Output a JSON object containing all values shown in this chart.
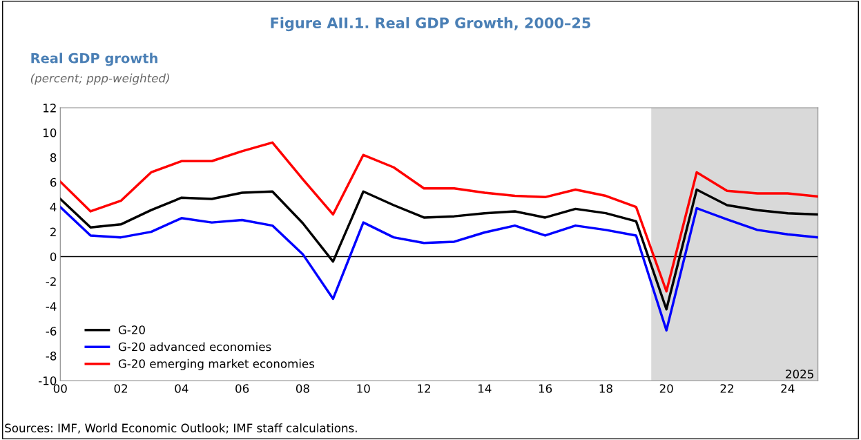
{
  "chart_data": {
    "type": "line",
    "title": "Figure AII.1. Real GDP Growth, 2000–25",
    "ylabel": "Real GDP growth",
    "subtitle": "(percent; ppp-weighted)",
    "x": [
      2000,
      2001,
      2002,
      2003,
      2004,
      2005,
      2006,
      2007,
      2008,
      2009,
      2010,
      2011,
      2012,
      2013,
      2014,
      2015,
      2016,
      2017,
      2018,
      2019,
      2020,
      2021,
      2022,
      2023,
      2024,
      2025
    ],
    "series": [
      {
        "name": "G-20",
        "color": "#000000",
        "values": [
          4.65,
          2.35,
          2.6,
          3.75,
          4.75,
          4.65,
          5.15,
          5.25,
          2.7,
          -0.4,
          5.25,
          4.15,
          3.15,
          3.25,
          3.5,
          3.65,
          3.15,
          3.85,
          3.5,
          2.85,
          -4.25,
          5.4,
          4.15,
          3.75,
          3.5,
          3.4
        ]
      },
      {
        "name": "G-20 advanced economies",
        "color": "#0000ff",
        "values": [
          4.0,
          1.7,
          1.55,
          2.0,
          3.1,
          2.75,
          2.95,
          2.5,
          0.2,
          -3.4,
          2.75,
          1.55,
          1.1,
          1.2,
          1.95,
          2.5,
          1.7,
          2.5,
          2.15,
          1.7,
          -5.95,
          3.9,
          3.0,
          2.15,
          1.8,
          1.55
        ]
      },
      {
        "name": "G-20 emerging market economies",
        "color": "#ff0000",
        "values": [
          6.05,
          3.65,
          4.5,
          6.8,
          7.7,
          7.7,
          8.5,
          9.2,
          6.25,
          3.4,
          8.2,
          7.2,
          5.5,
          5.5,
          5.15,
          4.9,
          4.8,
          5.4,
          4.9,
          4.0,
          -2.8,
          6.8,
          5.3,
          5.1,
          5.1,
          4.85
        ]
      }
    ],
    "xlim": [
      2000,
      2025
    ],
    "xticks": [
      {
        "value": 2000,
        "label": "00"
      },
      {
        "value": 2002,
        "label": "02"
      },
      {
        "value": 2004,
        "label": "04"
      },
      {
        "value": 2006,
        "label": "06"
      },
      {
        "value": 2008,
        "label": "08"
      },
      {
        "value": 2010,
        "label": "10"
      },
      {
        "value": 2012,
        "label": "12"
      },
      {
        "value": 2014,
        "label": "14"
      },
      {
        "value": 2016,
        "label": "16"
      },
      {
        "value": 2018,
        "label": "18"
      },
      {
        "value": 2020,
        "label": "20"
      },
      {
        "value": 2022,
        "label": "22"
      },
      {
        "value": 2024,
        "label": "24"
      }
    ],
    "ylim": [
      -10,
      12
    ],
    "yticks": [
      -10,
      -8,
      -6,
      -4,
      -2,
      0,
      2,
      4,
      6,
      8,
      10,
      12
    ],
    "ref_lines": [
      {
        "axis": "y",
        "value": 0,
        "color": "#000000"
      }
    ],
    "bands": [
      {
        "axis": "x",
        "from": 2019.5,
        "to": 2025,
        "label": "2025",
        "color": "#d9d9d9"
      }
    ],
    "annotations": [
      "Sources: IMF, World Economic Outlook; IMF staff calculations."
    ],
    "legend": "bottom left",
    "grid": false,
    "marker": "none",
    "line_style": "solid"
  }
}
